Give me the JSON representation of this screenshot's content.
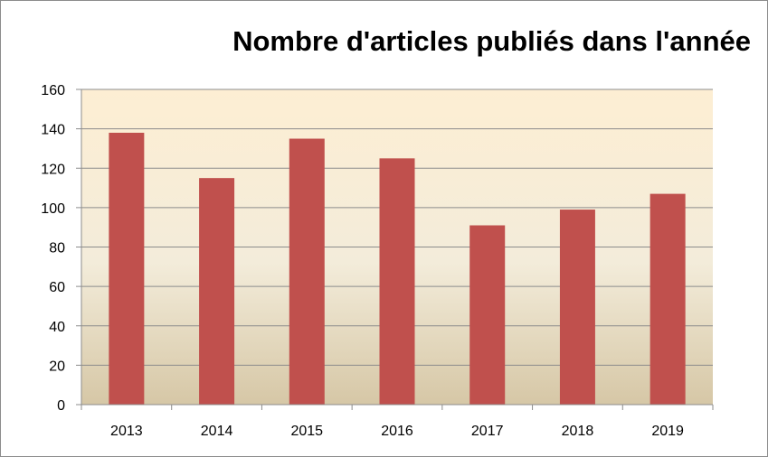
{
  "chart_data": {
    "type": "bar",
    "title": "Nombre d'articles publiés dans l'année",
    "xlabel": "",
    "ylabel": "",
    "categories": [
      "2013",
      "2014",
      "2015",
      "2016",
      "2017",
      "2018",
      "2019"
    ],
    "values": [
      138,
      115,
      135,
      125,
      91,
      99,
      107
    ],
    "ylim": [
      0,
      160
    ],
    "yticks": [
      0,
      20,
      40,
      60,
      80,
      100,
      120,
      140,
      160
    ],
    "grid": true,
    "legend": "none",
    "colors": {
      "bar": "#c0504d",
      "plot_top": "#fdeed3",
      "plot_mid": "#f3ecda",
      "plot_bottom": "#d6c7a6",
      "grid": "#8c8c8c",
      "axis": "#8c8c8c"
    }
  }
}
